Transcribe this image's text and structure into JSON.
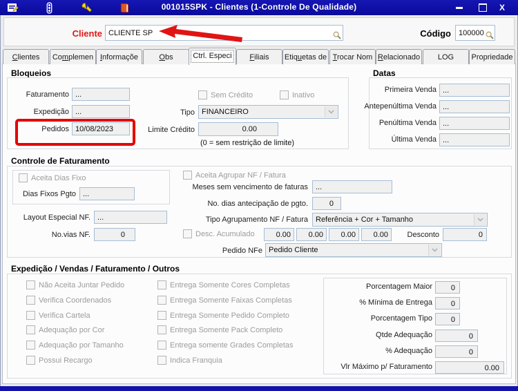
{
  "titlebar": {
    "title": "001015SPK - Clientes (1-Controle De Qualidade)",
    "minimize": "",
    "maximize": "",
    "close": "X"
  },
  "colors": {
    "titlebar_blue": "#0d0daa",
    "highlight_red": "#e01818",
    "input_border": "#a6bdd5"
  },
  "header": {
    "cliente_label": "Cliente",
    "cliente_value": "CLIENTE SP",
    "codigo_label": "Código",
    "codigo_value": "100000"
  },
  "tabs": [
    {
      "label": "Clientes"
    },
    {
      "label": "Complemen"
    },
    {
      "label": "Informaçõe"
    },
    {
      "label": "Obs"
    },
    {
      "label": "Ctrl. Especi"
    },
    {
      "label": "Filiais"
    },
    {
      "label": "Etiquetas de"
    },
    {
      "label": "Trocar Nom"
    },
    {
      "label": "Relacionado"
    },
    {
      "label": "LOG"
    },
    {
      "label": "Propriedade"
    }
  ],
  "bloqueios": {
    "title": "Bloqueios",
    "rows": [
      {
        "label": "Faturamento",
        "value": "..."
      },
      {
        "label": "Expedição",
        "value": "..."
      },
      {
        "label": "Pedidos",
        "value": "10/08/2023"
      }
    ],
    "chk_sem_credito": "Sem Crédito",
    "chk_inativo": "Inativo",
    "tipo_label": "Tipo",
    "tipo_value": "FINANCEIRO",
    "limite_label": "Limite Crédito",
    "limite_value": "0.00",
    "hint": "(0 = sem restrição de limite)"
  },
  "datas": {
    "title": "Datas",
    "rows": [
      {
        "label": "Primeira Venda",
        "value": "..."
      },
      {
        "label": "Antepenúltima Venda",
        "value": "..."
      },
      {
        "label": "Penúltima Venda",
        "value": "..."
      },
      {
        "label": "Última Venda",
        "value": "..."
      }
    ]
  },
  "controle": {
    "title": "Controle de Faturamento",
    "chk_dias_fixo": "Aceita Dias Fixo",
    "dias_label": "Dias Fixos Pgto",
    "dias_value": "...",
    "layout_label": "Layout Especial NF.",
    "layout_value": "...",
    "vias_label": "No.vias NF.",
    "vias_value": "0",
    "chk_agrupar": "Aceita Agrupar NF / Fatura",
    "meses_label": "Meses sem vencimento de faturas",
    "meses_value": "...",
    "antecipacao_label": "No. dias antecipação de pgto.",
    "antecipacao_value": "0",
    "agrup_label": "Tipo Agrupamento NF / Fatura",
    "agrup_value": "Referência + Cor + Tamanho",
    "chk_desc": "Desc. Acumulado",
    "desc_values": [
      "0.00",
      "0.00",
      "0.00",
      "0.00"
    ],
    "desconto_label": "Desconto",
    "desconto_value": "0",
    "nfe_label": "Pedido NFe",
    "nfe_value": "Pedido Cliente"
  },
  "expedicao": {
    "title": "Expedição / Vendas / Faturamento / Outros",
    "col1": [
      "Não Aceita Juntar Pedido",
      "Verifica Coordenados",
      "Verifica Cartela",
      "Adequação por Cor",
      "Adequação por Tamanho",
      "Possui Recargo"
    ],
    "col2": [
      "Entrega Somente Cores Completas",
      "Entrega Somente Faixas Completas",
      "Entrega Somente Pedido Completo",
      "Entrega Somente Pack Completo",
      "Entrega somente Grades Completas",
      "Indica Franquia"
    ],
    "rows": [
      {
        "label": "Porcentagem Maior",
        "value": "0"
      },
      {
        "label": "% Mínima de Entrega",
        "value": "0"
      },
      {
        "label": "Porcentagem Tipo",
        "value": "0"
      },
      {
        "label": "Qtde Adequação",
        "value": "0"
      },
      {
        "label": "% Adequação",
        "value": "0"
      },
      {
        "label": "Vlr Máximo p/ Faturamento",
        "value": "0.00"
      }
    ]
  }
}
